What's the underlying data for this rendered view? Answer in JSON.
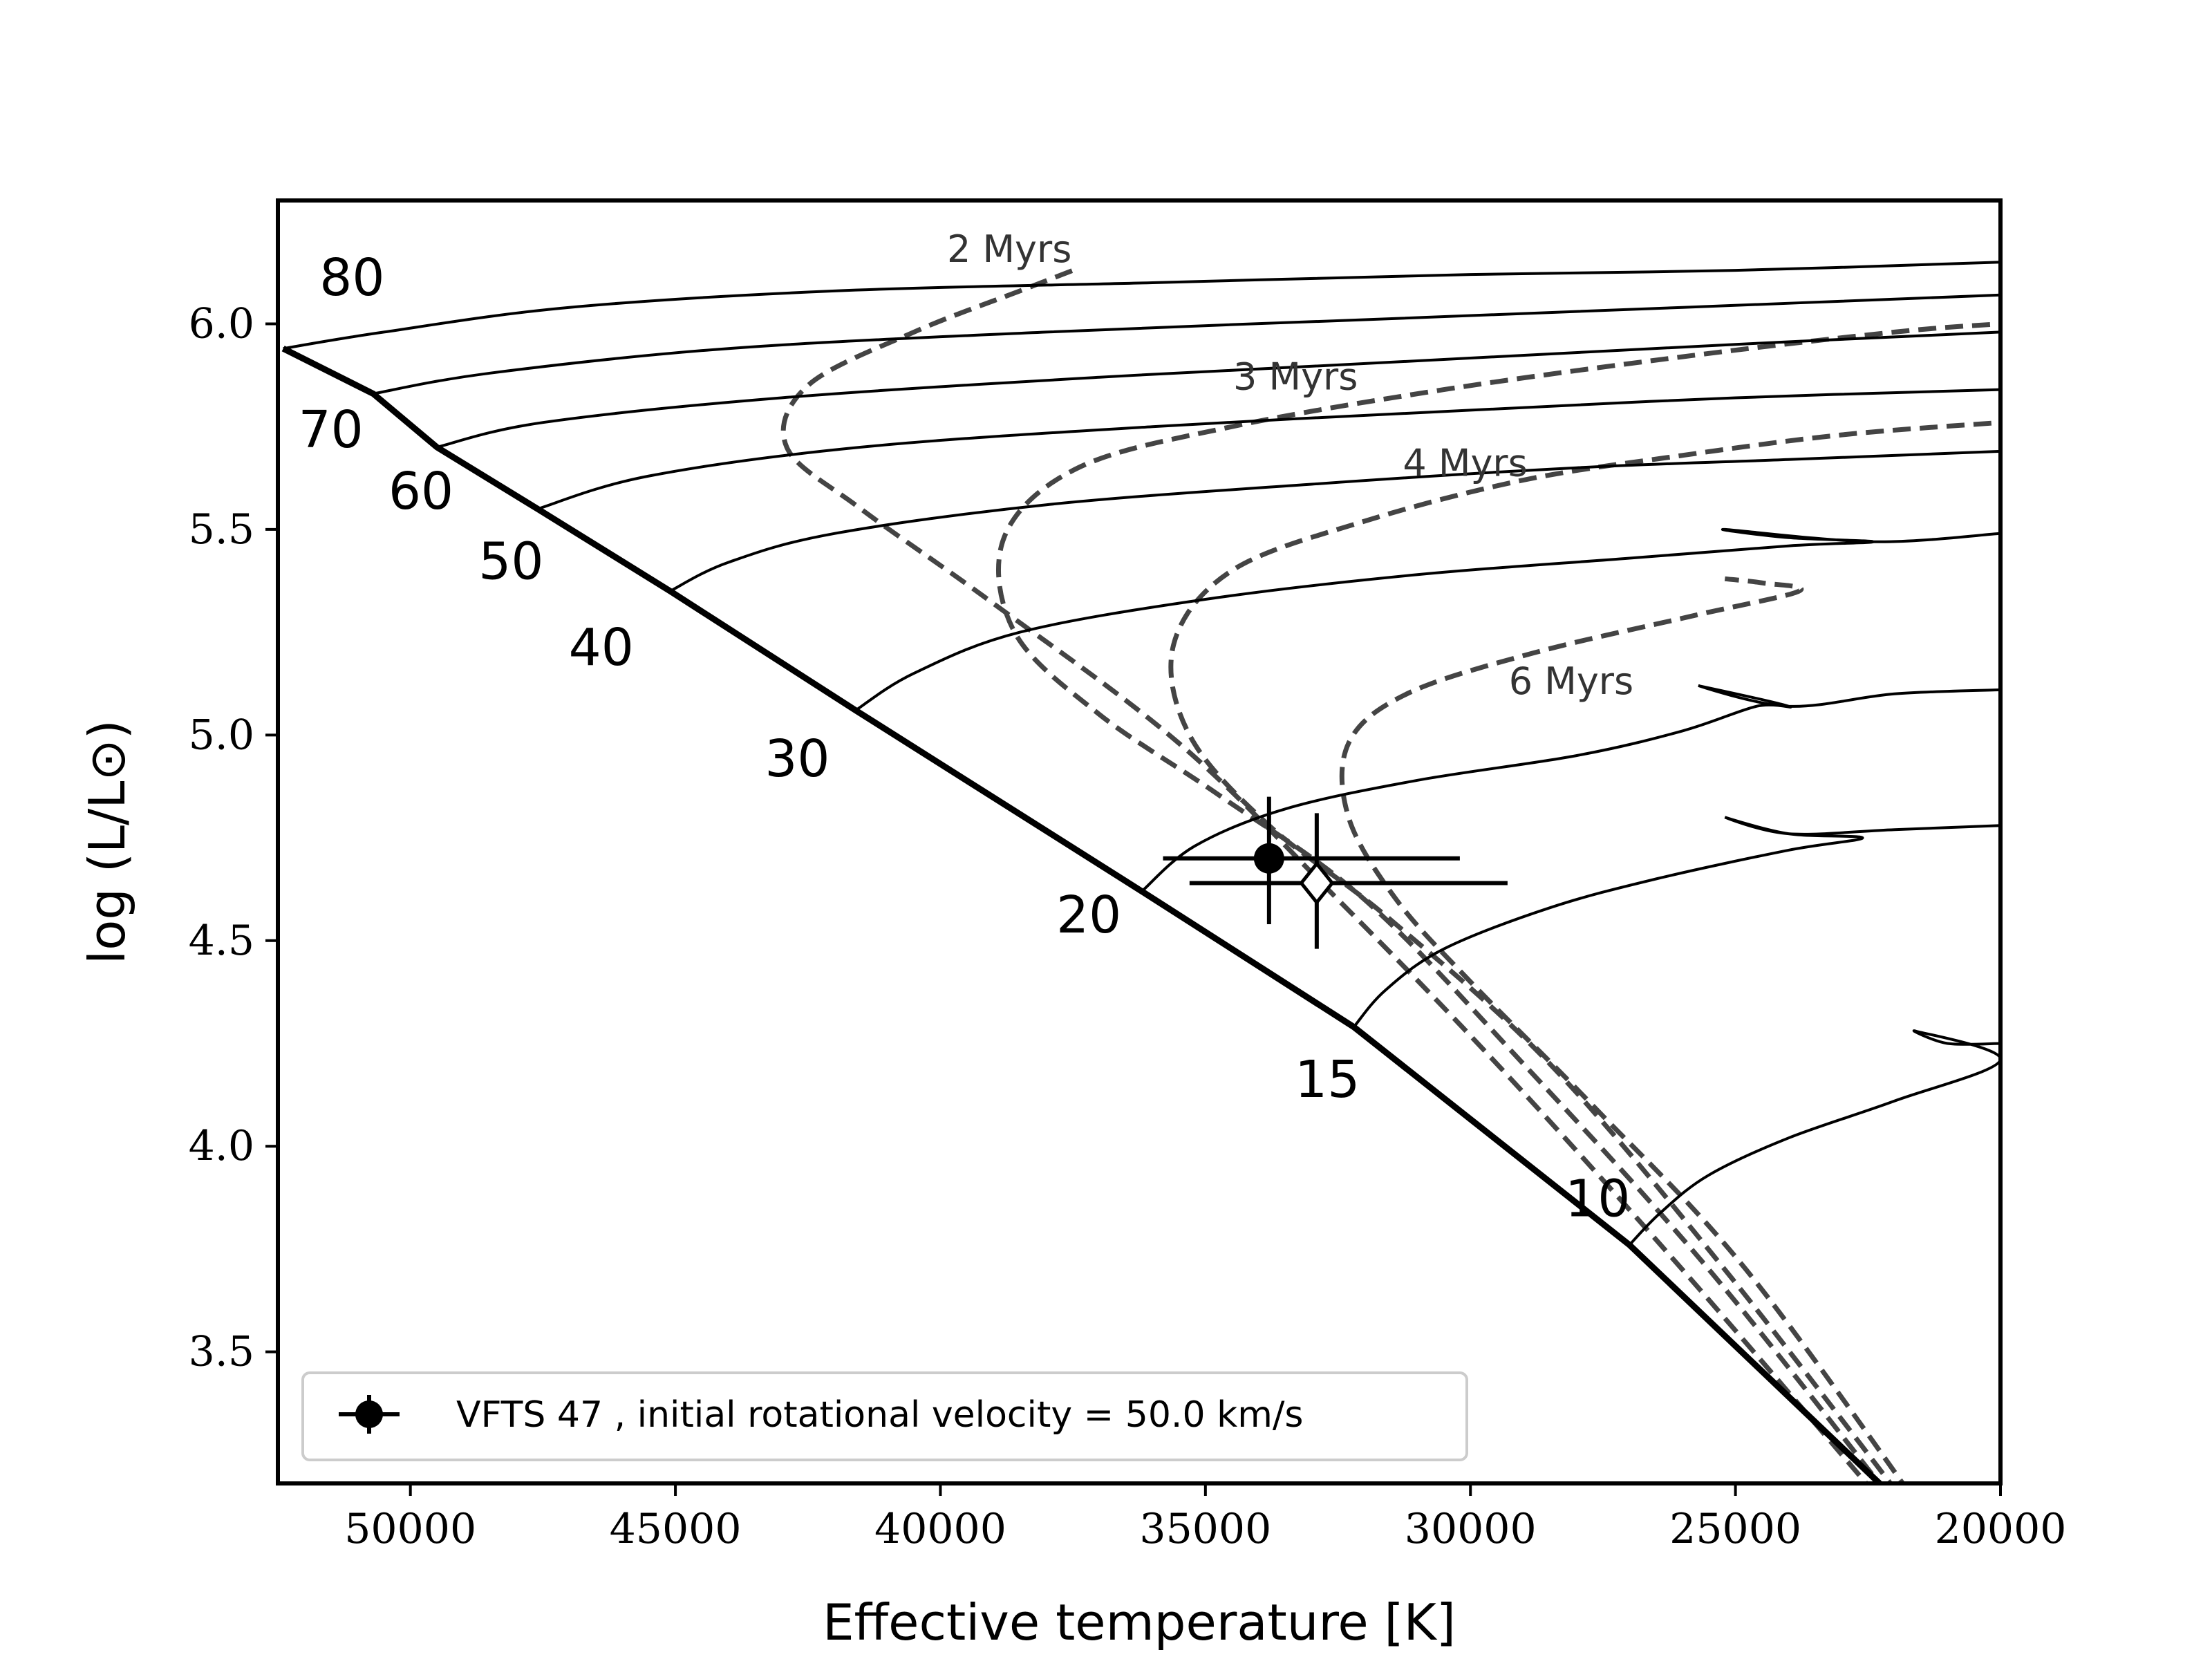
{
  "chart_data": {
    "type": "line",
    "xlabel": "Effective temperature [K]",
    "ylabel": "log (L/L⊙)",
    "xlim": [
      52500,
      20000
    ],
    "ylim": [
      3.18,
      6.3
    ],
    "x_ticks": [
      {
        "value": 50000,
        "label": "50000"
      },
      {
        "value": 45000,
        "label": "45000"
      },
      {
        "value": 40000,
        "label": "40000"
      },
      {
        "value": 35000,
        "label": "35000"
      },
      {
        "value": 30000,
        "label": "30000"
      },
      {
        "value": 25000,
        "label": "25000"
      },
      {
        "value": 20000,
        "label": "20000"
      }
    ],
    "y_ticks": [
      {
        "value": 3.5,
        "label": "3.5"
      },
      {
        "value": 4.0,
        "label": "4.0"
      },
      {
        "value": 4.5,
        "label": "4.5"
      },
      {
        "value": 5.0,
        "label": "5.0"
      },
      {
        "value": 5.5,
        "label": "5.5"
      },
      {
        "value": 6.0,
        "label": "6.0"
      }
    ],
    "zams": {
      "name": "ZAMS",
      "points": [
        [
          52400,
          5.94
        ],
        [
          50700,
          5.83
        ],
        [
          49500,
          5.7
        ],
        [
          47600,
          5.55
        ],
        [
          45100,
          5.35
        ],
        [
          41600,
          5.06
        ],
        [
          36200,
          4.62
        ],
        [
          32200,
          4.29
        ],
        [
          27000,
          3.76
        ],
        [
          22200,
          3.17
        ]
      ]
    },
    "tracks": [
      {
        "label": "80",
        "label_at": [
          51100,
          6.07
        ],
        "points": [
          [
            52400,
            5.94
          ],
          [
            50500,
            5.98
          ],
          [
            47000,
            6.04
          ],
          [
            42000,
            6.08
          ],
          [
            36000,
            6.1
          ],
          [
            30000,
            6.12
          ],
          [
            25000,
            6.13
          ],
          [
            20000,
            6.15
          ]
        ]
      },
      {
        "label": "70",
        "label_at": [
          51500,
          5.7
        ],
        "points": [
          [
            50700,
            5.83
          ],
          [
            48500,
            5.88
          ],
          [
            44000,
            5.94
          ],
          [
            38000,
            5.98
          ],
          [
            32000,
            6.01
          ],
          [
            26000,
            6.04
          ],
          [
            20000,
            6.07
          ]
        ]
      },
      {
        "label": "60",
        "label_at": [
          49800,
          5.55
        ],
        "points": [
          [
            49500,
            5.7
          ],
          [
            47500,
            5.76
          ],
          [
            43000,
            5.82
          ],
          [
            37000,
            5.87
          ],
          [
            31000,
            5.91
          ],
          [
            25000,
            5.95
          ],
          [
            20000,
            5.98
          ]
        ]
      },
      {
        "label": "50",
        "label_at": [
          48100,
          5.38
        ],
        "points": [
          [
            47600,
            5.55
          ],
          [
            45500,
            5.63
          ],
          [
            41500,
            5.7
          ],
          [
            36000,
            5.75
          ],
          [
            30000,
            5.79
          ],
          [
            25000,
            5.82
          ],
          [
            20000,
            5.84
          ]
        ]
      },
      {
        "label": "40",
        "label_at": [
          46400,
          5.17
        ],
        "points": [
          [
            45100,
            5.35
          ],
          [
            44000,
            5.42
          ],
          [
            42000,
            5.49
          ],
          [
            38000,
            5.56
          ],
          [
            33000,
            5.61
          ],
          [
            28000,
            5.65
          ],
          [
            24000,
            5.67
          ],
          [
            20000,
            5.69
          ]
        ]
      },
      {
        "label": "30",
        "label_at": [
          42700,
          4.9
        ],
        "points": [
          [
            41600,
            5.06
          ],
          [
            40500,
            5.15
          ],
          [
            38500,
            5.25
          ],
          [
            35000,
            5.33
          ],
          [
            31000,
            5.39
          ],
          [
            27000,
            5.43
          ],
          [
            24000,
            5.46
          ],
          [
            22400,
            5.47
          ],
          [
            24000,
            5.48
          ],
          [
            25200,
            5.5
          ],
          [
            22400,
            5.47
          ],
          [
            20000,
            5.49
          ]
        ]
      },
      {
        "label": "20",
        "label_at": [
          37200,
          4.52
        ],
        "points": [
          [
            36200,
            4.62
          ],
          [
            35200,
            4.73
          ],
          [
            33500,
            4.82
          ],
          [
            31000,
            4.89
          ],
          [
            28000,
            4.95
          ],
          [
            26000,
            5.01
          ],
          [
            24600,
            5.07
          ],
          [
            24000,
            5.07
          ],
          [
            25700,
            5.12
          ],
          [
            24000,
            5.07
          ],
          [
            22000,
            5.1
          ],
          [
            20000,
            5.11
          ]
        ]
      },
      {
        "label": "15",
        "label_at": [
          32700,
          4.12
        ],
        "points": [
          [
            32200,
            4.29
          ],
          [
            31600,
            4.38
          ],
          [
            30500,
            4.48
          ],
          [
            28500,
            4.58
          ],
          [
            26500,
            4.65
          ],
          [
            24000,
            4.72
          ],
          [
            22600,
            4.75
          ],
          [
            24000,
            4.76
          ],
          [
            25200,
            4.8
          ],
          [
            24000,
            4.76
          ],
          [
            22000,
            4.77
          ],
          [
            20000,
            4.78
          ]
        ]
      },
      {
        "label": "10",
        "label_at": [
          27600,
          3.83
        ],
        "points": [
          [
            27000,
            3.76
          ],
          [
            26400,
            3.84
          ],
          [
            25500,
            3.93
          ],
          [
            24000,
            4.02
          ],
          [
            22000,
            4.11
          ],
          [
            20000,
            4.21
          ],
          [
            21600,
            4.28
          ],
          [
            21000,
            4.25
          ],
          [
            20000,
            4.25
          ]
        ]
      }
    ],
    "isochrones": [
      {
        "label": "2 Myrs",
        "label_at": [
          38700,
          6.15
        ],
        "points": [
          [
            22000,
            3.1
          ],
          [
            26000,
            3.7
          ],
          [
            29500,
            4.2
          ],
          [
            32500,
            4.6
          ],
          [
            35500,
            4.98
          ],
          [
            39000,
            5.32
          ],
          [
            41500,
            5.55
          ],
          [
            42900,
            5.7
          ],
          [
            42500,
            5.85
          ],
          [
            40500,
            5.98
          ],
          [
            38500,
            6.08
          ],
          [
            37500,
            6.13
          ]
        ]
      },
      {
        "label": "3 Myrs",
        "label_at": [
          33300,
          5.84
        ],
        "points": [
          [
            21800,
            3.1
          ],
          [
            25500,
            3.7
          ],
          [
            29000,
            4.2
          ],
          [
            32000,
            4.6
          ],
          [
            34700,
            4.85
          ],
          [
            37000,
            5.05
          ],
          [
            38600,
            5.25
          ],
          [
            38800,
            5.48
          ],
          [
            37400,
            5.65
          ],
          [
            34500,
            5.75
          ],
          [
            30500,
            5.84
          ],
          [
            26000,
            5.92
          ],
          [
            22000,
            5.98
          ],
          [
            20000,
            6.0
          ]
        ]
      },
      {
        "label": "4 Myrs",
        "label_at": [
          30100,
          5.63
        ],
        "points": [
          [
            21600,
            3.1
          ],
          [
            25200,
            3.7
          ],
          [
            28500,
            4.2
          ],
          [
            31500,
            4.55
          ],
          [
            33800,
            4.78
          ],
          [
            35300,
            5.0
          ],
          [
            35600,
            5.22
          ],
          [
            34500,
            5.4
          ],
          [
            32000,
            5.52
          ],
          [
            29000,
            5.62
          ],
          [
            26000,
            5.68
          ],
          [
            23000,
            5.73
          ],
          [
            20000,
            5.76
          ]
        ]
      },
      {
        "label": "6 Myrs",
        "label_at": [
          28100,
          5.1
        ],
        "points": [
          [
            21400,
            3.1
          ],
          [
            24800,
            3.7
          ],
          [
            27700,
            4.1
          ],
          [
            30000,
            4.4
          ],
          [
            31400,
            4.6
          ],
          [
            32300,
            4.8
          ],
          [
            32300,
            4.98
          ],
          [
            31200,
            5.1
          ],
          [
            28800,
            5.2
          ],
          [
            25800,
            5.29
          ],
          [
            23800,
            5.35
          ],
          [
            24500,
            5.37
          ],
          [
            25200,
            5.38
          ]
        ]
      }
    ],
    "observations": [
      {
        "name": "VFTS 47",
        "marker": "filled-circle",
        "teff": 33800,
        "logL": 4.7,
        "teff_err": [
          2000,
          3600
        ],
        "logL_err": [
          0.15,
          0.16
        ]
      },
      {
        "name": "VFTS 47 (model)",
        "marker": "open-diamond",
        "teff": 32900,
        "logL": 4.64,
        "teff_err": [
          2400,
          3600
        ],
        "logL_err": [
          0.17,
          0.16
        ]
      }
    ],
    "legend": {
      "position": "lower-left",
      "entries": [
        {
          "label": "VFTS 47 , initial rotational velocity = 50.0 km/s",
          "marker": "filled-circle-errorbar"
        }
      ]
    }
  }
}
